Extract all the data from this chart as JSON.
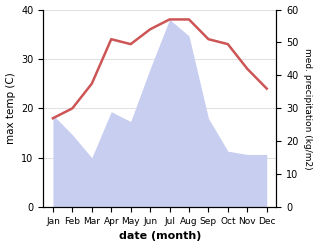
{
  "months": [
    "Jan",
    "Feb",
    "Mar",
    "Apr",
    "May",
    "Jun",
    "Jul",
    "Aug",
    "Sep",
    "Oct",
    "Nov",
    "Dec"
  ],
  "month_positions": [
    1,
    2,
    3,
    4,
    5,
    6,
    7,
    8,
    9,
    10,
    11,
    12
  ],
  "temperature": [
    18,
    20,
    25,
    34,
    33,
    36,
    38,
    38,
    34,
    33,
    28,
    24
  ],
  "precipitation_right": [
    28,
    22,
    15,
    29,
    26,
    42,
    57,
    52,
    27,
    17,
    16,
    16
  ],
  "temp_color": "#cd5555",
  "precip_fill_color": "#c8cef0",
  "temp_ylim": [
    0,
    40
  ],
  "precip_ylim": [
    0,
    60
  ],
  "temp_yticks": [
    0,
    10,
    20,
    30,
    40
  ],
  "precip_yticks": [
    0,
    10,
    20,
    30,
    40,
    50,
    60
  ],
  "xlabel": "date (month)",
  "ylabel_left": "max temp (C)",
  "ylabel_right": "med. precipitation (kg/m2)",
  "xlim": [
    0.5,
    12.5
  ],
  "background_color": "#ffffff"
}
